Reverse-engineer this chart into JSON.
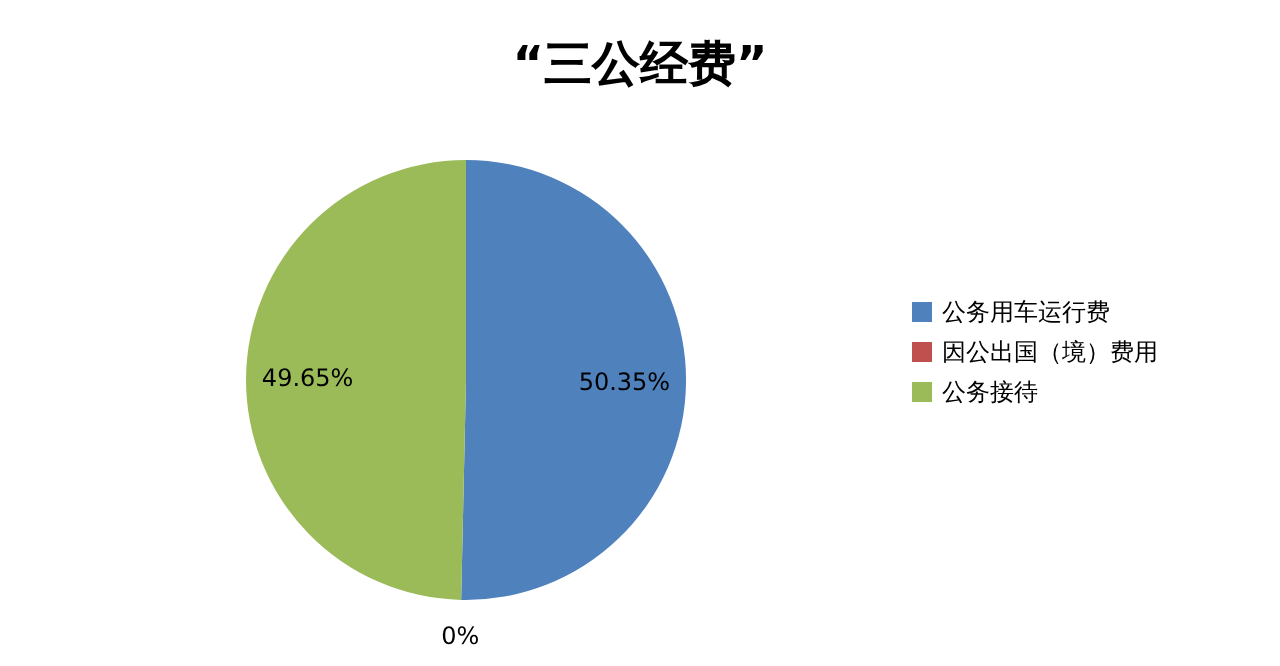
{
  "chart_data": {
    "type": "pie",
    "title": "“三公经费”",
    "categories": [
      "公务用车运行费",
      "因公出国（境）费用",
      "公务接待"
    ],
    "values": [
      50.35,
      0,
      49.65
    ],
    "colors": [
      "#4f81bd",
      "#c0504d",
      "#9bbb59"
    ],
    "value_labels": [
      "50.35%",
      "0%",
      "49.65%"
    ],
    "legend": "right"
  }
}
